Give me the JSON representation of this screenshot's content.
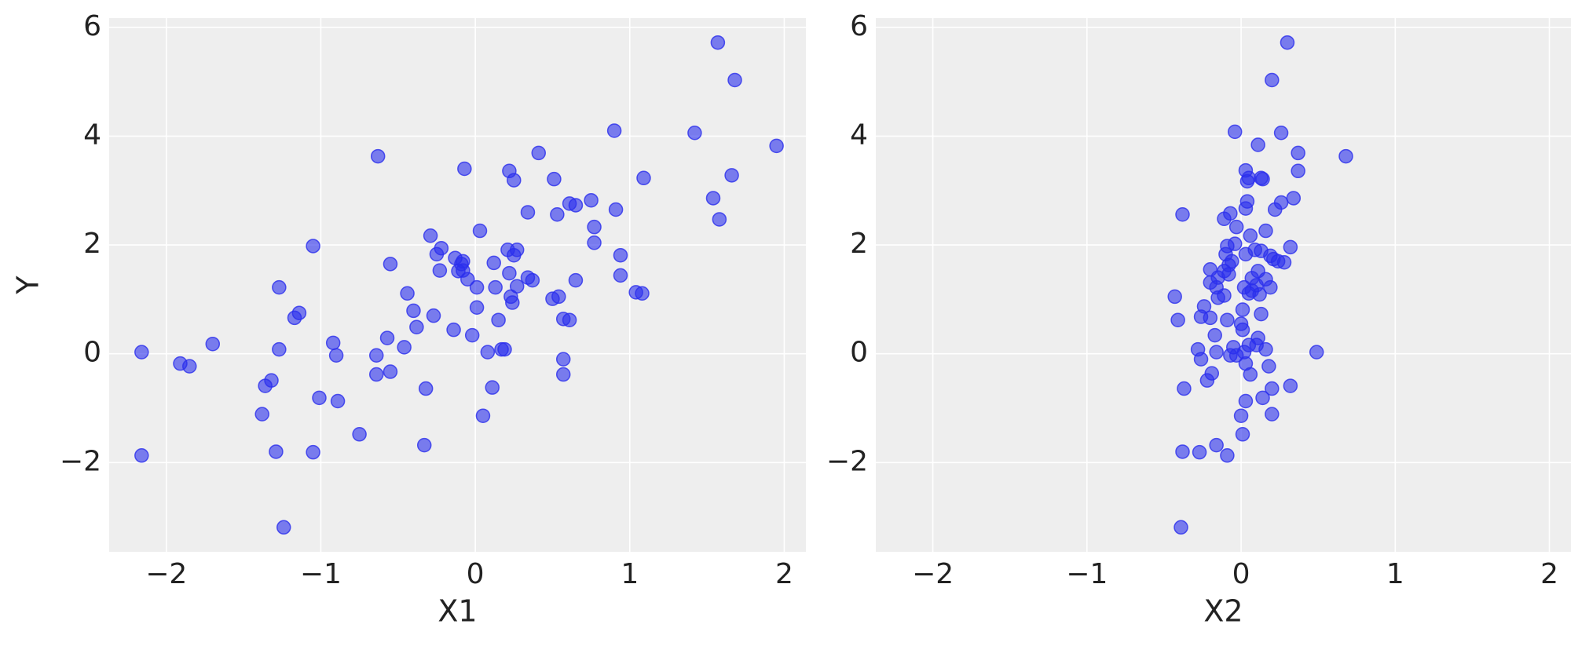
{
  "chart_data": [
    {
      "type": "scatter",
      "xlabel": "X1",
      "ylabel": "Y",
      "color": "#2a2eec",
      "grid": true,
      "xlim": [
        -2.37,
        2.14
      ],
      "ylim": [
        -3.64,
        6.17
      ],
      "xticks": [
        {
          "value": -2,
          "label": "−2"
        },
        {
          "value": -1,
          "label": "−1"
        },
        0,
        1,
        2
      ],
      "yticks": [
        {
          "value": -2,
          "label": "−2"
        },
        0,
        2,
        4,
        6
      ],
      "x": [
        -2.16,
        -2.16,
        -1.91,
        -1.85,
        -1.7,
        -1.27,
        -1.27,
        -1.32,
        -1.36,
        -1.38,
        -1.29,
        -1.24,
        -1.17,
        -1.14,
        -1.05,
        -1.05,
        -1.01,
        -0.92,
        -0.9,
        -0.89,
        -0.75,
        -0.63,
        -0.64,
        -0.64,
        -0.57,
        -0.55,
        -0.55,
        -0.46,
        -0.44,
        -0.4,
        -0.38,
        -0.32,
        -0.33,
        -0.29,
        -0.27,
        -0.25,
        -0.22,
        -0.23,
        -0.14,
        -0.13,
        -0.09,
        -0.11,
        -0.08,
        -0.08,
        -0.07,
        -0.05,
        -0.02,
        0.01,
        0.01,
        0.03,
        0.05,
        0.08,
        0.11,
        0.12,
        0.13,
        0.15,
        0.17,
        0.19,
        0.21,
        0.22,
        0.22,
        0.23,
        0.24,
        0.25,
        0.25,
        0.27,
        0.27,
        0.34,
        0.34,
        0.37,
        0.41,
        0.51,
        0.5,
        0.53,
        0.54,
        0.57,
        0.57,
        0.57,
        0.61,
        0.61,
        0.65,
        0.65,
        0.75,
        0.77,
        0.77,
        0.9,
        0.91,
        0.94,
        0.94,
        1.04,
        1.08,
        1.09,
        1.42,
        1.54,
        1.57,
        1.58,
        1.66,
        1.68,
        1.95
      ],
      "y": [
        0.03,
        -1.87,
        -0.18,
        -0.23,
        0.18,
        1.22,
        0.08,
        -0.49,
        -0.59,
        -1.11,
        -1.8,
        -3.19,
        0.66,
        0.75,
        1.98,
        -1.81,
        -0.81,
        0.2,
        -0.03,
        -0.87,
        -1.48,
        3.63,
        -0.03,
        -0.38,
        0.29,
        1.65,
        -0.33,
        0.12,
        1.11,
        0.79,
        0.49,
        -0.64,
        -1.68,
        2.17,
        0.7,
        1.83,
        1.94,
        1.53,
        0.44,
        1.76,
        1.65,
        1.52,
        1.7,
        1.53,
        3.4,
        1.37,
        0.34,
        1.22,
        0.85,
        2.26,
        -1.14,
        0.03,
        -0.62,
        1.67,
        1.22,
        0.62,
        0.08,
        0.08,
        1.91,
        3.36,
        1.48,
        1.05,
        0.94,
        1.81,
        3.19,
        1.91,
        1.24,
        2.6,
        1.4,
        1.35,
        3.69,
        3.21,
        1.01,
        2.56,
        1.05,
        -0.1,
        -0.38,
        0.64,
        2.76,
        0.62,
        2.73,
        1.35,
        2.82,
        2.33,
        2.04,
        4.1,
        2.65,
        1.81,
        1.44,
        1.13,
        1.11,
        3.23,
        4.06,
        2.86,
        5.72,
        2.47,
        3.28,
        5.03,
        3.82
      ]
    },
    {
      "type": "scatter",
      "xlabel": "X2",
      "color": "#2a2eec",
      "grid": true,
      "xlim": [
        -2.37,
        2.14
      ],
      "ylim": [
        -3.64,
        6.17
      ],
      "xticks": [
        {
          "value": -2,
          "label": "−2"
        },
        {
          "value": -1,
          "label": "−1"
        },
        0,
        1,
        2
      ],
      "yticks": [
        {
          "value": -2,
          "label": "−2"
        },
        0,
        2,
        4,
        6
      ],
      "x": [
        0.3,
        0.2,
        -0.04,
        0.26,
        0.11,
        0.37,
        0.68,
        0.03,
        0.37,
        0.05,
        0.13,
        0.14,
        0.04,
        0.34,
        0.26,
        0.04,
        0.03,
        0.22,
        -0.07,
        -0.38,
        -0.11,
        -0.03,
        0.16,
        0.06,
        -0.04,
        -0.09,
        0.32,
        0.09,
        0.13,
        0.03,
        -0.1,
        0.19,
        0.21,
        -0.06,
        0.24,
        -0.08,
        0.28,
        -0.2,
        0.11,
        -0.11,
        -0.08,
        -0.15,
        0.07,
        0.16,
        -0.2,
        0.1,
        0.02,
        0.19,
        -0.16,
        0.07,
        0.05,
        0.12,
        -0.11,
        -0.43,
        -0.15,
        -0.24,
        0.01,
        0.13,
        -0.26,
        -0.2,
        -0.41,
        -0.09,
        0.0,
        0.01,
        -0.17,
        0.11,
        -0.05,
        0.05,
        0.1,
        0.16,
        -0.28,
        0.02,
        -0.16,
        0.49,
        -0.07,
        -0.03,
        -0.26,
        0.18,
        0.03,
        -0.19,
        0.06,
        -0.22,
        0.32,
        -0.37,
        0.2,
        0.14,
        0.03,
        0.2,
        0.0,
        0.01,
        -0.16,
        -0.38,
        -0.27,
        -0.09,
        -0.39
      ],
      "y": [
        5.72,
        5.03,
        4.08,
        4.06,
        3.84,
        3.69,
        3.63,
        3.37,
        3.36,
        3.23,
        3.23,
        3.21,
        3.17,
        2.86,
        2.78,
        2.8,
        2.67,
        2.65,
        2.58,
        2.56,
        2.48,
        2.33,
        2.26,
        2.17,
        2.02,
        1.98,
        1.96,
        1.91,
        1.89,
        1.83,
        1.83,
        1.8,
        1.74,
        1.7,
        1.7,
        1.63,
        1.68,
        1.55,
        1.52,
        1.52,
        1.46,
        1.4,
        1.39,
        1.37,
        1.31,
        1.26,
        1.22,
        1.22,
        1.22,
        1.16,
        1.11,
        1.09,
        1.07,
        1.05,
        1.03,
        0.87,
        0.81,
        0.73,
        0.68,
        0.66,
        0.62,
        0.62,
        0.55,
        0.44,
        0.34,
        0.29,
        0.12,
        0.16,
        0.16,
        0.08,
        0.08,
        0.03,
        0.03,
        0.03,
        -0.03,
        -0.03,
        -0.1,
        -0.23,
        -0.18,
        -0.36,
        -0.38,
        -0.49,
        -0.59,
        -0.64,
        -0.64,
        -0.81,
        -0.87,
        -1.11,
        -1.14,
        -1.48,
        -1.68,
        -1.8,
        -1.81,
        -1.87,
        -3.19
      ]
    }
  ]
}
